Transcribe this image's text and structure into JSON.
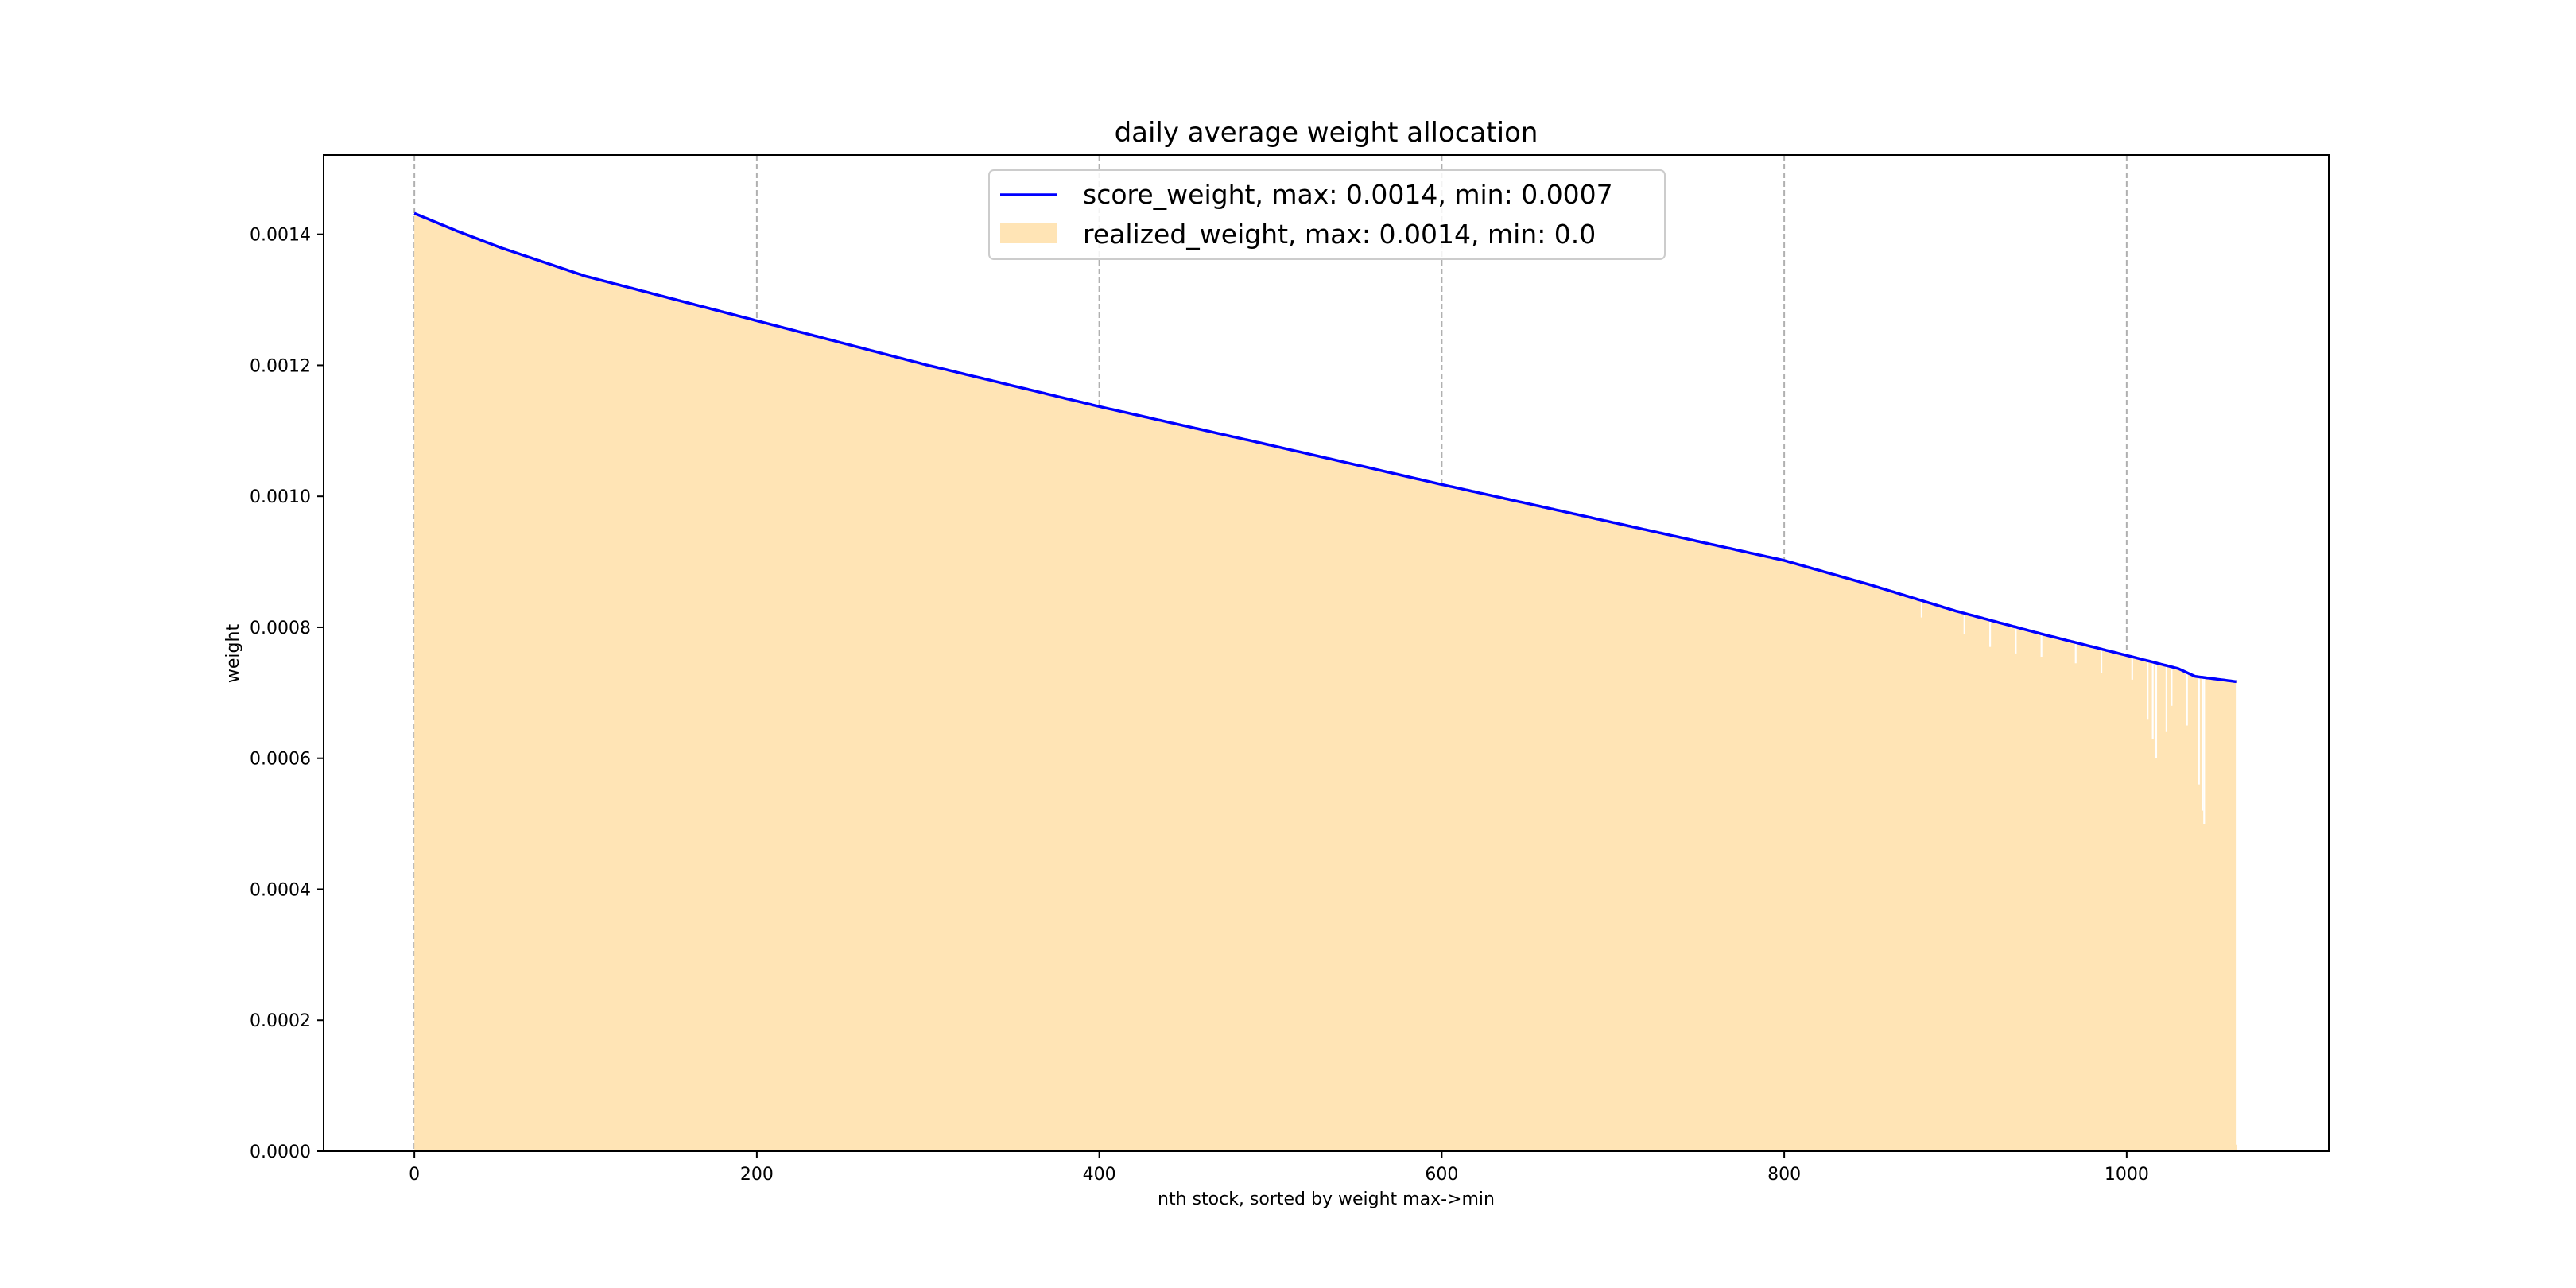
{
  "chart_data": {
    "type": "area",
    "title": "daily average weight allocation",
    "xlabel": "nth stock, sorted by weight max->min",
    "ylabel": "weight",
    "xlim": [
      -53,
      1118
    ],
    "ylim": [
      0,
      0.001521
    ],
    "xticks": [
      0,
      200,
      400,
      600,
      800,
      1000
    ],
    "xtick_labels": [
      "0",
      "200",
      "400",
      "600",
      "800",
      "1000"
    ],
    "yticks": [
      0,
      0.0002,
      0.0004,
      0.0006,
      0.0008,
      0.001,
      0.0012,
      0.0014
    ],
    "ytick_labels": [
      "0.0000",
      "0.0002",
      "0.0004",
      "0.0006",
      "0.0008",
      "0.0010",
      "0.0012",
      "0.0014"
    ],
    "grid": "vertical dashed",
    "legend_placement": "upper-center",
    "n_points": 1065,
    "series": [
      {
        "name": "score_weight",
        "legend": "score_weight, max: 0.0014, min: 0.0007",
        "kind": "line",
        "color": "#0000ff",
        "keypoints": [
          [
            0,
            0.001432
          ],
          [
            25,
            0.001405
          ],
          [
            50,
            0.00138
          ],
          [
            100,
            0.001336
          ],
          [
            200,
            0.001268
          ],
          [
            300,
            0.0012
          ],
          [
            400,
            0.001137
          ],
          [
            500,
            0.001078
          ],
          [
            600,
            0.001018
          ],
          [
            700,
            0.00096
          ],
          [
            800,
            0.000902
          ],
          [
            850,
            0.000865
          ],
          [
            900,
            0.000825
          ],
          [
            950,
            0.00079
          ],
          [
            1000,
            0.000757
          ],
          [
            1030,
            0.000737
          ],
          [
            1040,
            0.000725
          ],
          [
            1064,
            0.000717
          ]
        ]
      },
      {
        "name": "realized_weight",
        "legend": "realized_weight, max: 0.0014, min: 0.0",
        "kind": "fill",
        "color": "#ffe4b5",
        "follows": "score_weight",
        "dips": [
          [
            880,
            0.000815
          ],
          [
            905,
            0.00079
          ],
          [
            920,
            0.00077
          ],
          [
            935,
            0.00076
          ],
          [
            950,
            0.000755
          ],
          [
            970,
            0.000745
          ],
          [
            985,
            0.00073
          ],
          [
            1003,
            0.00072
          ],
          [
            1012,
            0.00066
          ],
          [
            1015,
            0.00063
          ],
          [
            1017,
            0.0006
          ],
          [
            1023,
            0.00064
          ],
          [
            1026,
            0.00068
          ],
          [
            1035,
            0.00065
          ],
          [
            1042,
            0.00056
          ],
          [
            1044,
            0.00052
          ],
          [
            1045,
            0.0005
          ],
          [
            1064,
            1e-05
          ]
        ]
      }
    ]
  }
}
